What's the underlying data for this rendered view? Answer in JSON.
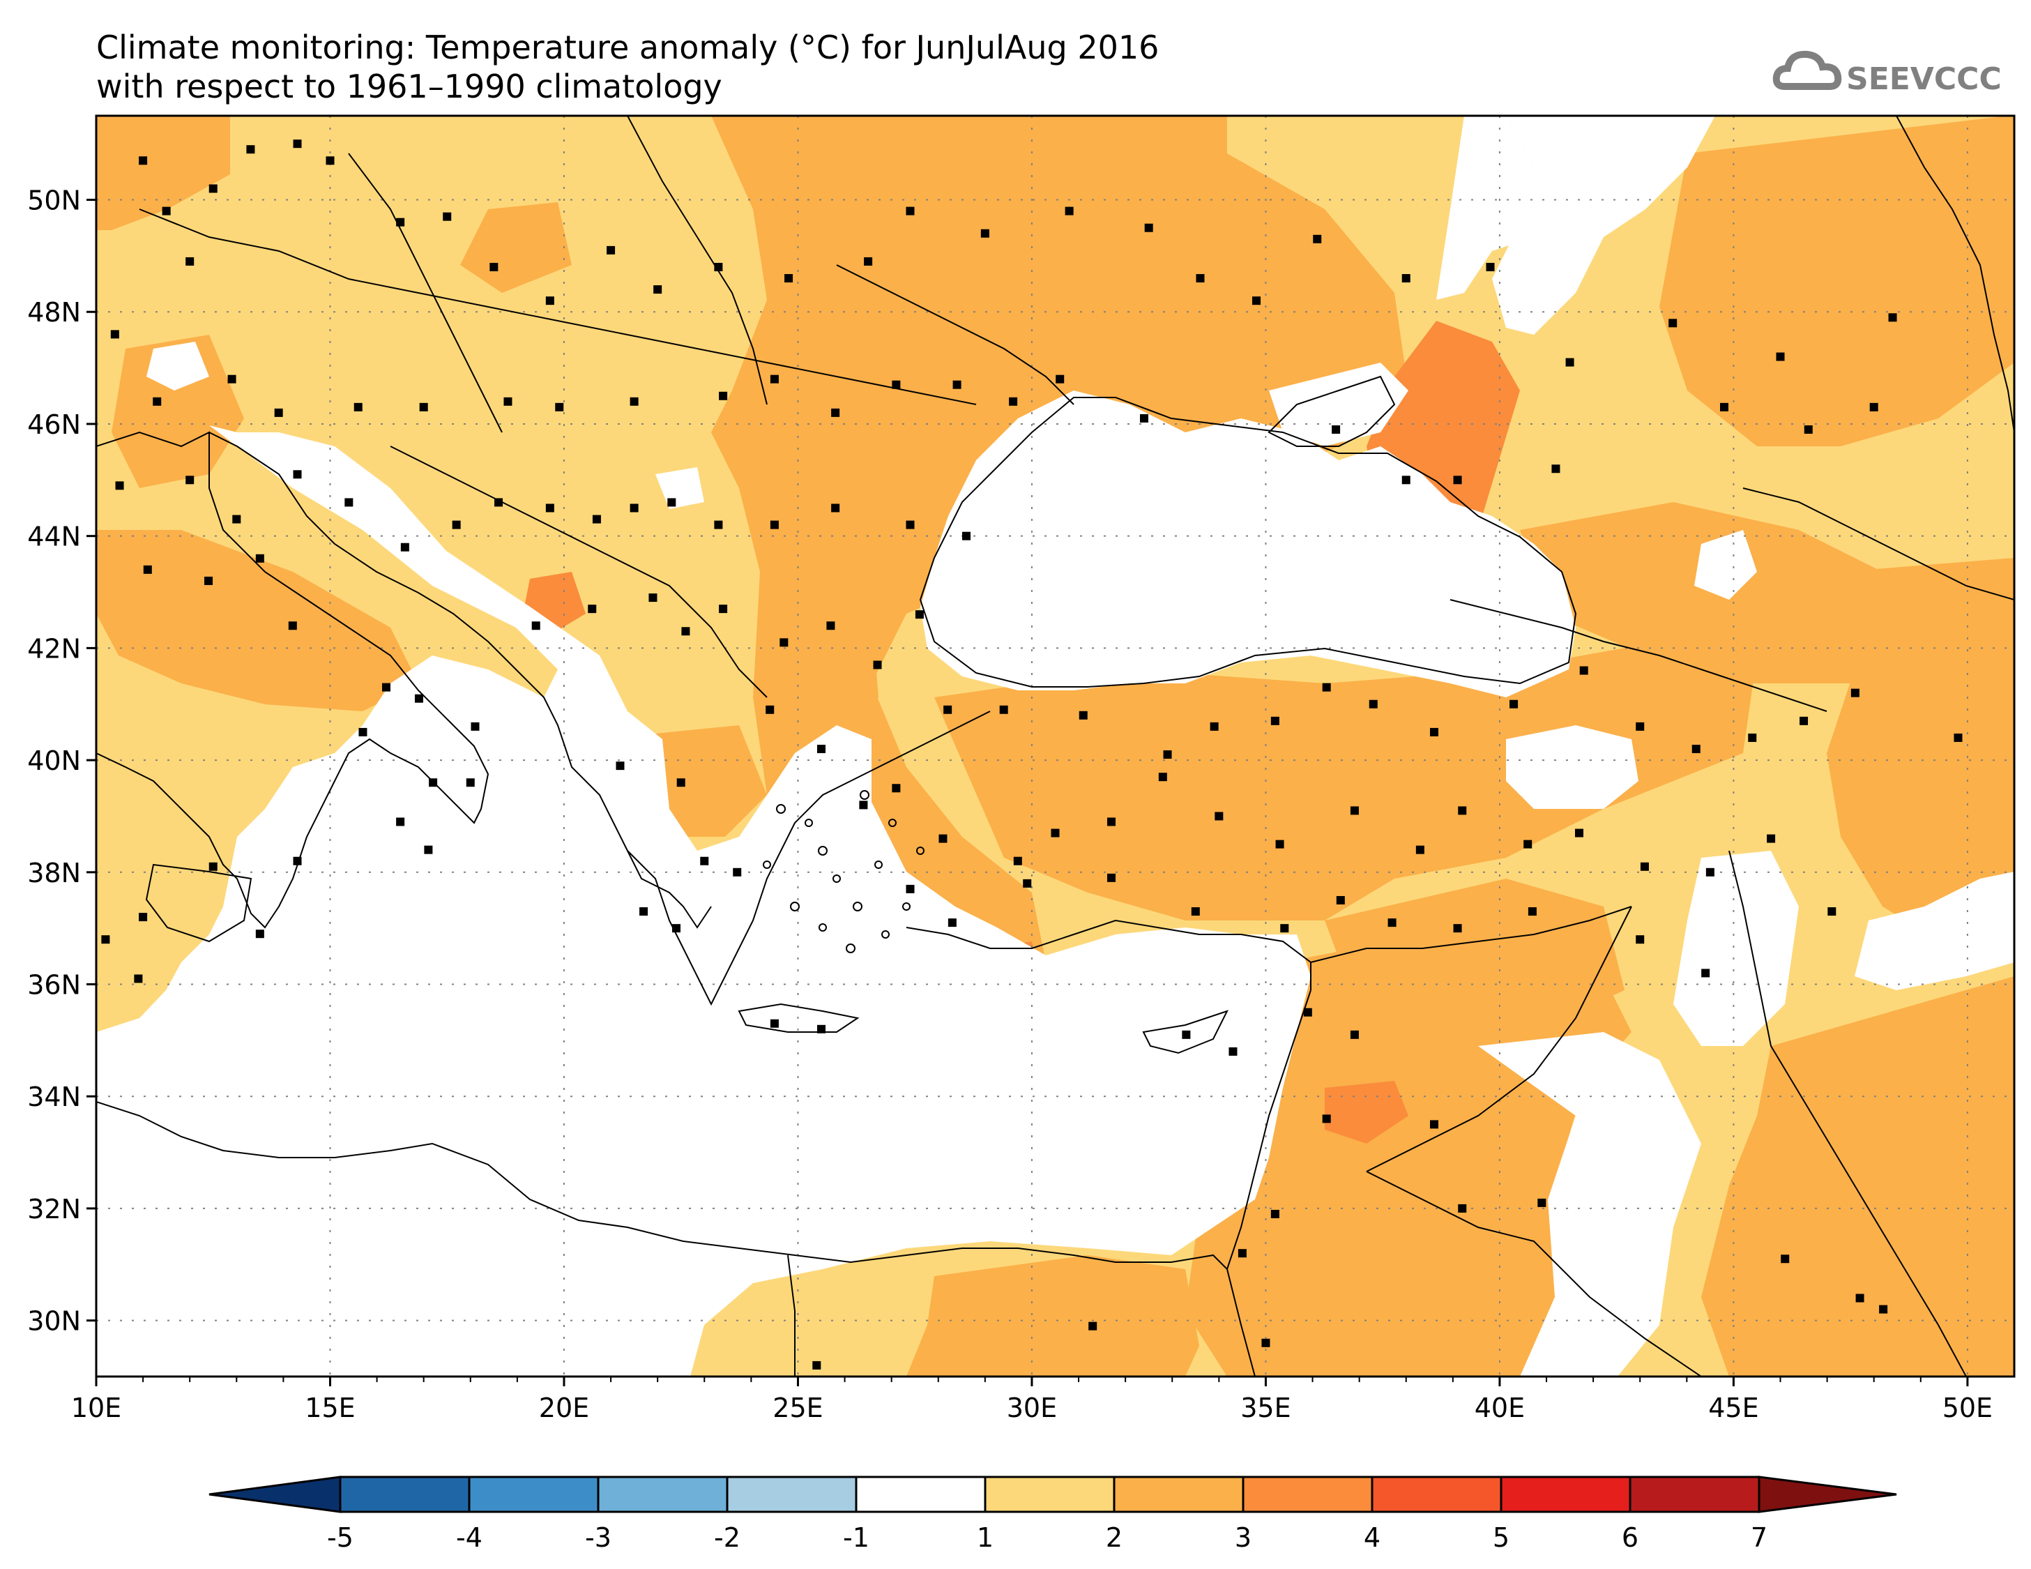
{
  "title": {
    "line1": "Climate monitoring: Temperature anomaly (°C) for JunJulAug 2016",
    "line2": "with respect to 1961–1990 climatology"
  },
  "logo": {
    "text": "SEEVCCC",
    "icon": "cloud-logo-icon"
  },
  "map": {
    "lon_range": [
      10,
      51
    ],
    "lat_range": [
      29,
      51.5
    ],
    "lon_ticks": [
      "10E",
      "15E",
      "20E",
      "25E",
      "30E",
      "35E",
      "40E",
      "45E",
      "50E"
    ],
    "lat_ticks": [
      "30N",
      "32N",
      "34N",
      "36N",
      "38N",
      "40N",
      "42N",
      "44N",
      "46N",
      "48N",
      "50N"
    ],
    "gridlines": true,
    "fill_colors": {
      "1-2": "#fdd87a",
      "2-3": "#fbb04a",
      "3-4": "#fa8c3c"
    }
  },
  "colorbar": {
    "labels": [
      "-5",
      "-4",
      "-3",
      "-2",
      "-1",
      "1",
      "2",
      "3",
      "4",
      "5",
      "6",
      "7"
    ],
    "colors": [
      "#08306b",
      "#1f66a6",
      "#3d8ec8",
      "#6eb0d8",
      "#a6cde2",
      "#ffffff",
      "#fdd87a",
      "#fbb04a",
      "#fa8c3c",
      "#f5572a",
      "#e51f1c",
      "#b81b1b",
      "#7f1010"
    ]
  }
}
